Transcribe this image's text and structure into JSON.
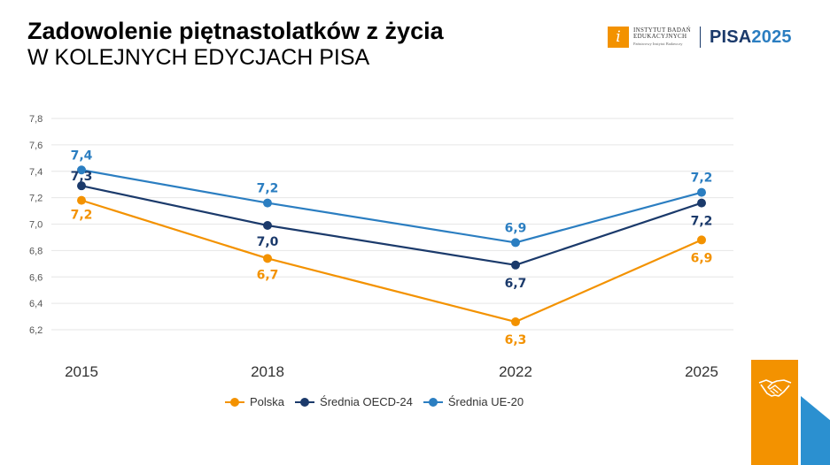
{
  "title": "Zadowolenie piętnastolatków z życia",
  "subtitle": "W KOLEJNYCH EDYCJACH PISA",
  "logo": {
    "ibe_line1": "INSTYTUT BADAŃ",
    "ibe_line2": "EDUKACYJNYCH",
    "ibe_line3": "Państwowy Instytut Badawczy",
    "pisa": "PISA",
    "pisa_year": "2025"
  },
  "colors": {
    "polska": "#f39200",
    "oecd": "#1b3a6b",
    "ue": "#2b7ec1",
    "grid": "#e6e6e6"
  },
  "icons": [
    "handshake-icon"
  ],
  "chart_data": {
    "type": "line",
    "title": "Zadowolenie piętnastolatków z życia",
    "subtitle": "W KOLEJNYCH EDYCJACH PISA",
    "x": [
      "2015",
      "2018",
      "2022",
      "2025"
    ],
    "xlabel": "",
    "ylabel": "",
    "ylim": [
      6.1,
      7.8
    ],
    "yticks": [
      "6,2",
      "6,4",
      "6,6",
      "6,8",
      "7,0",
      "7,2",
      "7,4",
      "7,6",
      "7,8"
    ],
    "grid": true,
    "legend_position": "bottom",
    "series": [
      {
        "name": "Polska",
        "values": [
          7.18,
          6.74,
          6.26,
          6.88
        ],
        "labels": [
          "7,2",
          "6,7",
          "6,3",
          "6,9"
        ]
      },
      {
        "name": "Średnia OECD-24",
        "values": [
          7.29,
          6.99,
          6.69,
          7.16
        ],
        "labels": [
          "7,3",
          "7,0",
          "6,7",
          "7,2"
        ]
      },
      {
        "name": "Średnia UE-20",
        "values": [
          7.41,
          7.16,
          6.86,
          7.24
        ],
        "labels": [
          "7,4",
          "7,2",
          "6,9",
          "7,2"
        ]
      }
    ]
  }
}
